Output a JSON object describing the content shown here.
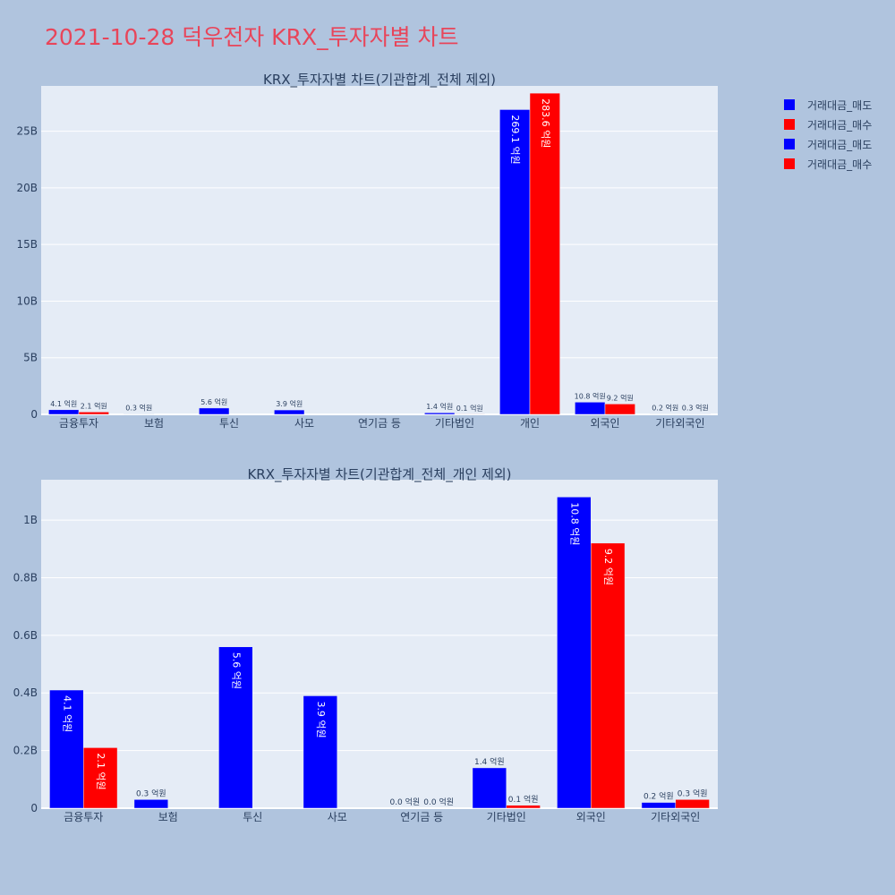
{
  "page": {
    "title": "2021-10-28 덕우전자 KRX_투자자별 차트"
  },
  "legend": [
    {
      "label": "거래대금_매도",
      "color": "#0000ff"
    },
    {
      "label": "거래대금_매수",
      "color": "#ff0000"
    },
    {
      "label": "거래대금_매도",
      "color": "#0000ff"
    },
    {
      "label": "거래대금_매수",
      "color": "#ff0000"
    }
  ],
  "chart_data": [
    {
      "type": "bar",
      "title": "KRX_투자자별 차트(기관합계_전체 제외)",
      "categories": [
        "금융투자",
        "보험",
        "투신",
        "사모",
        "연기금 등",
        "기타법인",
        "개인",
        "외국인",
        "기타외국인"
      ],
      "ylim": [
        0,
        29000000000
      ],
      "yticks": [
        0,
        5000000000,
        10000000000,
        15000000000,
        20000000000,
        25000000000
      ],
      "ytick_labels": [
        "0",
        "5B",
        "10B",
        "15B",
        "20B",
        "25B"
      ],
      "grid": true,
      "series": [
        {
          "name": "거래대금_매도",
          "color": "#0000ff",
          "values": [
            410000000,
            30000000,
            560000000,
            390000000,
            0,
            140000000,
            26910000000,
            1080000000,
            20000000
          ],
          "labels": [
            "4.1 억원",
            "0.3 억원",
            "5.6 억원",
            "3.9 억원",
            "",
            "1.4 억원",
            "269.1 억원",
            "10.8 억원",
            "0.2 억원"
          ]
        },
        {
          "name": "거래대금_매수",
          "color": "#ff0000",
          "values": [
            210000000,
            0,
            0,
            0,
            0,
            10000000,
            28360000000,
            920000000,
            30000000
          ],
          "labels": [
            "2.1 억원",
            "",
            "",
            "",
            "",
            "0.1 억원",
            "283.6 억원",
            "9.2 억원",
            "0.3 억원"
          ]
        }
      ]
    },
    {
      "type": "bar",
      "title": "KRX_투자자별 차트(기관합계_전체_개인 제외)",
      "categories": [
        "금융투자",
        "보험",
        "투신",
        "사모",
        "연기금 등",
        "기타법인",
        "외국인",
        "기타외국인"
      ],
      "ylim": [
        0,
        1140000000
      ],
      "yticks": [
        0,
        200000000,
        400000000,
        600000000,
        800000000,
        1000000000
      ],
      "ytick_labels": [
        "0",
        "0.2B",
        "0.4B",
        "0.6B",
        "0.8B",
        "1B"
      ],
      "grid": true,
      "series": [
        {
          "name": "거래대금_매도",
          "color": "#0000ff",
          "values": [
            410000000,
            30000000,
            560000000,
            390000000,
            0,
            140000000,
            1080000000,
            20000000
          ],
          "labels": [
            "4.1 억원",
            "0.3 억원",
            "5.6 억원",
            "3.9 억원",
            "0.0 억원",
            "1.4 억원",
            "10.8 억원",
            "0.2 억원"
          ]
        },
        {
          "name": "거래대금_매수",
          "color": "#ff0000",
          "values": [
            210000000,
            0,
            0,
            0,
            0,
            10000000,
            920000000,
            30000000
          ],
          "labels": [
            "2.1 억원",
            "",
            "",
            "",
            "0.0 억원",
            "0.1 억원",
            "9.2 억원",
            "0.3 억원"
          ]
        }
      ]
    }
  ]
}
